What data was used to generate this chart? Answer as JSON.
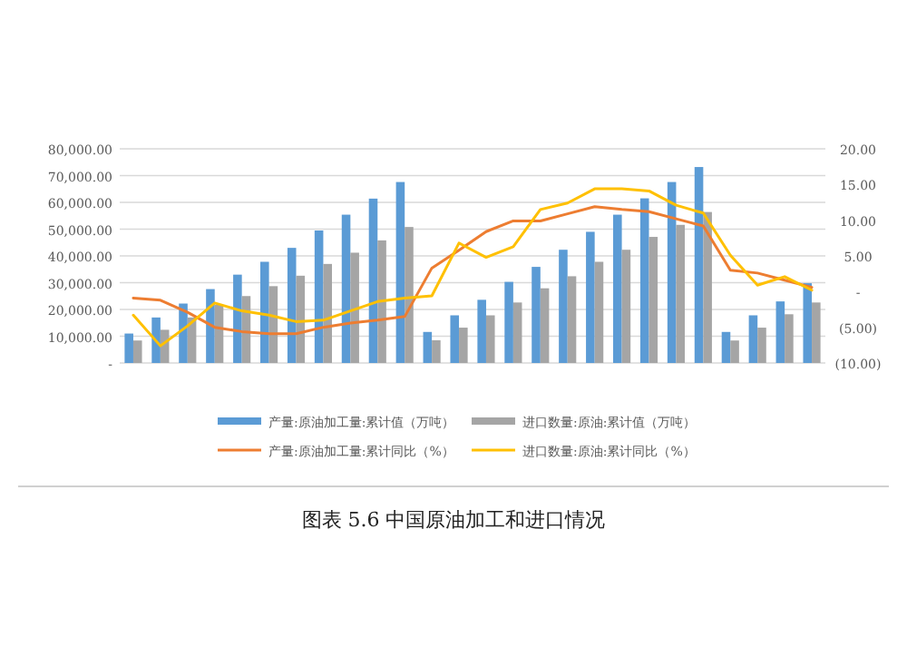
{
  "chart_data": {
    "type": "bar",
    "title": "图表 5.6    中国原油加工和进口情况",
    "categories": [
      null,
      null,
      null,
      null,
      null,
      null,
      null,
      null,
      null,
      null,
      null,
      null,
      null,
      null,
      null,
      null,
      null,
      null,
      null,
      null,
      null,
      null,
      null,
      null,
      null,
      null
    ],
    "series": [
      {
        "name": "产量:原油加工量:累计值（万吨）",
        "color": "#5b9bd5",
        "values": [
          11000,
          17000,
          22200,
          27600,
          33000,
          37800,
          43000,
          49500,
          55400,
          61400,
          67600,
          11600,
          17800,
          23600,
          30300,
          35900,
          42300,
          49000,
          55400,
          61500,
          67600,
          73200,
          11600,
          17800,
          23000,
          29800
        ]
      },
      {
        "name": "进口数量:原油:累计值（万吨）",
        "color": "#a5a5a5",
        "values": [
          8400,
          12400,
          17000,
          21800,
          25000,
          28700,
          32600,
          37000,
          41200,
          45800,
          50800,
          8500,
          13200,
          17800,
          22600,
          27900,
          32400,
          37800,
          42300,
          47100,
          51600,
          56400,
          8400,
          13200,
          18200,
          22600
        ]
      },
      {
        "name": "产量:原油加工量:累计同比（%）",
        "color": "#ed7d31",
        "type": "line",
        "axis": "y2",
        "values": [
          -0.9,
          -1.2,
          -2.9,
          -5.0,
          -5.6,
          -5.9,
          -5.9,
          -5.0,
          -4.4,
          -4.0,
          -3.5,
          3.3,
          5.8,
          8.4,
          9.9,
          9.9,
          10.9,
          11.9,
          11.5,
          11.2,
          10.2,
          9.2,
          3.0,
          2.6,
          1.6,
          0.6
        ]
      },
      {
        "name": "进口数量:原油:累计同比（%）",
        "color": "#ffc000",
        "type": "line",
        "axis": "y2",
        "values": [
          -3.3,
          -7.6,
          -4.8,
          -1.6,
          -2.7,
          -3.3,
          -4.2,
          -4.0,
          -2.7,
          -1.4,
          -0.9,
          -0.6,
          6.8,
          4.8,
          6.3,
          11.5,
          12.4,
          14.4,
          14.4,
          14.1,
          12.1,
          11.0,
          5.1,
          0.9,
          2.1,
          0.2
        ]
      }
    ],
    "ylim": [
      0,
      80000
    ],
    "yticks": [
      {
        "value": 0,
        "label": "-"
      },
      {
        "value": 10000,
        "label": "10,000.00"
      },
      {
        "value": 20000,
        "label": "20,000.00"
      },
      {
        "value": 30000,
        "label": "30,000.00"
      },
      {
        "value": 40000,
        "label": "40,000.00"
      },
      {
        "value": 50000,
        "label": "50,000.00"
      },
      {
        "value": 60000,
        "label": "60,000.00"
      },
      {
        "value": 70000,
        "label": "70,000.00"
      },
      {
        "value": 80000,
        "label": "80,000.00"
      }
    ],
    "y2lim": [
      -10,
      20
    ],
    "y2ticks": [
      {
        "value": -10,
        "label": "(10.00)"
      },
      {
        "value": -5,
        "label": "(5.00)"
      },
      {
        "value": 0,
        "label": "-"
      },
      {
        "value": 5,
        "label": "5.00"
      },
      {
        "value": 10,
        "label": "10.00"
      },
      {
        "value": 15,
        "label": "15.00"
      },
      {
        "value": 20,
        "label": "20.00"
      }
    ],
    "grid": "y",
    "legend": "bottom"
  }
}
